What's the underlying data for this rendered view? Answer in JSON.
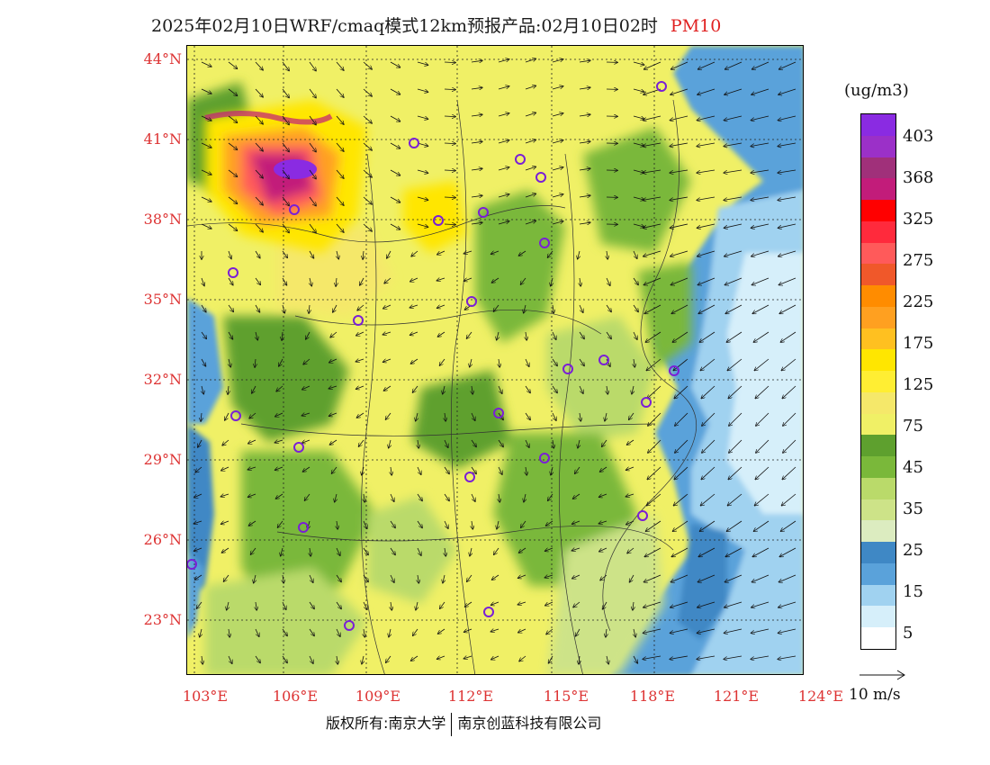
{
  "title": {
    "main": "2025年02月10日WRF/cmaq模式12km预报产品:02月10日02时",
    "variable": "PM10"
  },
  "map": {
    "lat_labels": [
      "44°N",
      "41°N",
      "38°N",
      "35°N",
      "32°N",
      "29°N",
      "26°N",
      "23°N"
    ],
    "lon_labels": [
      "103°E",
      "106°E",
      "109°E",
      "112°E",
      "115°E",
      "118°E",
      "121°E",
      "124°E"
    ],
    "lat_range": [
      21,
      44.5
    ],
    "lon_range": [
      102.8,
      124
    ]
  },
  "colorbar": {
    "unit": "(ug/m3)",
    "labels": [
      "403",
      "368",
      "325",
      "275",
      "225",
      "175",
      "125",
      "75",
      "45",
      "35",
      "25",
      "15",
      "5"
    ],
    "colors": [
      "#8a2be2",
      "#9b30c8",
      "#a0307a",
      "#c21c7a",
      "#ff0000",
      "#ff2a3c",
      "#ff5a5a",
      "#f0582a",
      "#ff8c00",
      "#ffa020",
      "#ffc020",
      "#ffe600",
      "#ffee33",
      "#f5e86a",
      "#f0f066",
      "#5ea02e",
      "#7ab83a",
      "#bada6a",
      "#cde388",
      "#dcecc0",
      "#3f88c5",
      "#5aa2da",
      "#a0d2f0",
      "#d6effa",
      "#ffffff"
    ]
  },
  "wind_reference": {
    "label": "10 m/s"
  },
  "footer": {
    "left": "版权所有:南京大学",
    "right": "南京创蓝科技有限公司"
  },
  "stations": [
    "s1",
    "s2",
    "s3",
    "s4",
    "s5",
    "s6",
    "s7",
    "s8",
    "s9",
    "s10",
    "s11",
    "s12",
    "s13",
    "s14",
    "s15",
    "s16",
    "s17",
    "s18",
    "s19",
    "s20",
    "s21",
    "s22",
    "s23",
    "s24",
    "s25",
    "s26",
    "s27"
  ]
}
